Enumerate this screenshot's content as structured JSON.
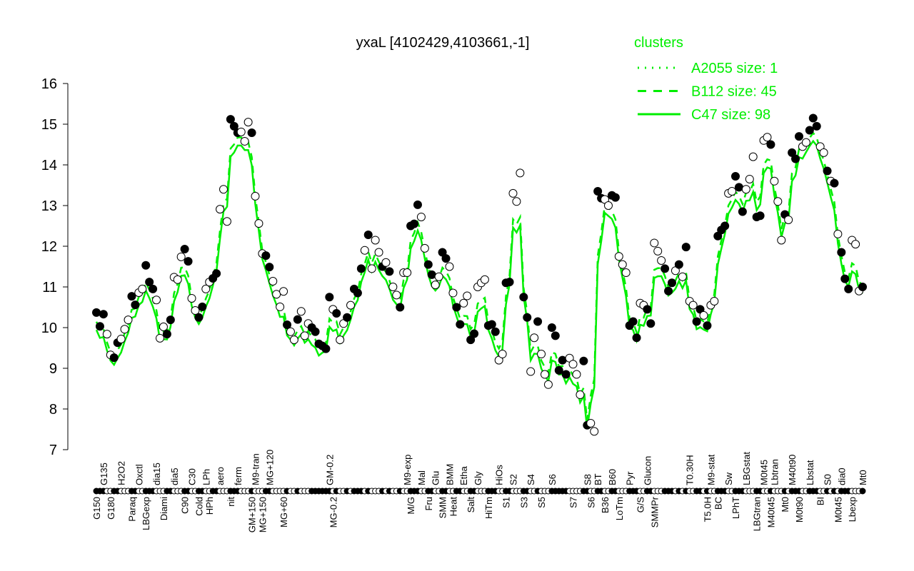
{
  "chart_data": {
    "type": "scatter",
    "title": "yxaL [4102429,4103661,-1]",
    "xlabel": "",
    "ylabel": "",
    "ylim": [
      7,
      16
    ],
    "yticks": [
      7,
      8,
      9,
      10,
      11,
      12,
      13,
      14,
      15,
      16
    ],
    "grid": false,
    "legend": {
      "title": "clusters",
      "placement": "top-right",
      "color": "#00ee00",
      "entries": [
        {
          "label": "A2055 size: 1",
          "style": "dotted"
        },
        {
          "label": "B112 size: 45",
          "style": "dashed"
        },
        {
          "label": "C47 size: 98",
          "style": "solid"
        }
      ]
    },
    "colors": {
      "line": "#00ee00",
      "filled_point": "#000000",
      "open_point": "#ffffff"
    },
    "points": [
      [
        "G150",
        10.37,
        1
      ],
      [
        "",
        10.03,
        1
      ],
      [
        "G135",
        10.33,
        1
      ],
      [
        "",
        9.84,
        0
      ],
      [
        "G180",
        9.33,
        0
      ],
      [
        "",
        9.26,
        1
      ],
      [
        "",
        9.63,
        1
      ],
      [
        "H2O2",
        9.72,
        0
      ],
      [
        "",
        9.96,
        0
      ],
      [
        "",
        10.19,
        0
      ],
      [
        "Paraq",
        10.77,
        1
      ],
      [
        "",
        10.56,
        1
      ],
      [
        "Oxctl",
        10.86,
        0
      ],
      [
        "",
        10.95,
        0
      ],
      [
        "LBGexp",
        11.53,
        1
      ],
      [
        "",
        11.12,
        1
      ],
      [
        "",
        10.95,
        1
      ],
      [
        "dia15",
        10.68,
        0
      ],
      [
        "",
        9.74,
        0
      ],
      [
        "Diami",
        10.02,
        0
      ],
      [
        "",
        9.84,
        1
      ],
      [
        "",
        10.19,
        1
      ],
      [
        "dia5",
        11.24,
        0
      ],
      [
        "",
        11.18,
        0
      ],
      [
        "",
        11.74,
        0
      ],
      [
        "C90",
        11.93,
        1
      ],
      [
        "",
        11.63,
        1
      ],
      [
        "C30",
        10.72,
        0
      ],
      [
        "",
        10.42,
        0
      ],
      [
        "Cold",
        10.25,
        1
      ],
      [
        "",
        10.51,
        1
      ],
      [
        "LPh",
        10.95,
        0
      ],
      [
        "HPh",
        11.12,
        0
      ],
      [
        "",
        11.21,
        1
      ],
      [
        "",
        11.33,
        1
      ],
      [
        "aero",
        12.91,
        0
      ],
      [
        "",
        13.4,
        0
      ],
      [
        "",
        12.61,
        0
      ],
      [
        "nit",
        15.12,
        1
      ],
      [
        "",
        14.95,
        1
      ],
      [
        "ferm",
        14.79,
        1
      ],
      [
        "",
        14.81,
        0
      ],
      [
        "",
        14.58,
        0
      ],
      [
        "",
        15.05,
        0
      ],
      [
        "GM+150",
        14.79,
        1
      ],
      [
        "M9-tran",
        13.23,
        0
      ],
      [
        "",
        12.56,
        0
      ],
      [
        "MG+150",
        11.82,
        0
      ],
      [
        "",
        11.77,
        1
      ],
      [
        "MG+120",
        11.49,
        1
      ],
      [
        "",
        11.14,
        0
      ],
      [
        "",
        10.82,
        0
      ],
      [
        "",
        10.51,
        0
      ],
      [
        "MG+60",
        10.89,
        0
      ],
      [
        "",
        10.07,
        1
      ],
      [
        "",
        9.9,
        0
      ],
      [
        "",
        9.7,
        0
      ],
      [
        "",
        10.2,
        1
      ],
      [
        "",
        10.4,
        0
      ],
      [
        "",
        9.8,
        0
      ],
      [
        "",
        10.1,
        0
      ],
      [
        "",
        10.0,
        1
      ],
      [
        "",
        9.9,
        1
      ],
      [
        "",
        9.6,
        1
      ],
      [
        "",
        9.55,
        1
      ],
      [
        "",
        9.48,
        1
      ],
      [
        "GM-0.2",
        10.75,
        1
      ],
      [
        "MG-0.2",
        10.45,
        0
      ],
      [
        "",
        10.35,
        1
      ],
      [
        "",
        9.7,
        0
      ],
      [
        "",
        10.1,
        0
      ],
      [
        "",
        10.25,
        1
      ],
      [
        "",
        10.55,
        0
      ],
      [
        "",
        10.95,
        1
      ],
      [
        "",
        10.85,
        1
      ],
      [
        "",
        11.45,
        1
      ],
      [
        "",
        11.9,
        0
      ],
      [
        "",
        12.28,
        1
      ],
      [
        "",
        11.45,
        0
      ],
      [
        "",
        12.15,
        0
      ],
      [
        "",
        11.85,
        0
      ],
      [
        "",
        11.5,
        1
      ],
      [
        "",
        11.6,
        0
      ],
      [
        "",
        11.38,
        1
      ],
      [
        "",
        11.0,
        0
      ],
      [
        "",
        10.8,
        0
      ],
      [
        "",
        10.5,
        1
      ],
      [
        "",
        11.35,
        0
      ],
      [
        "M9-exp",
        11.35,
        0
      ],
      [
        "M/G",
        12.5,
        1
      ],
      [
        "",
        12.55,
        1
      ],
      [
        "",
        13.02,
        1
      ],
      [
        "Mal",
        12.72,
        0
      ],
      [
        "",
        11.95,
        0
      ],
      [
        "Fru",
        11.55,
        1
      ],
      [
        "",
        11.3,
        1
      ],
      [
        "Glu",
        11.05,
        0
      ],
      [
        "",
        11.25,
        0
      ],
      [
        "SMM",
        11.85,
        1
      ],
      [
        "",
        11.7,
        1
      ],
      [
        "BMM",
        11.5,
        0
      ],
      [
        "Heat",
        10.85,
        0
      ],
      [
        "",
        10.5,
        1
      ],
      [
        "",
        10.08,
        1
      ],
      [
        "Etha",
        10.6,
        0
      ],
      [
        "",
        10.78,
        0
      ],
      [
        "Salt",
        9.7,
        1
      ],
      [
        "",
        9.85,
        1
      ],
      [
        "Gly",
        11.0,
        0
      ],
      [
        "",
        11.1,
        0
      ],
      [
        "",
        11.18,
        0
      ],
      [
        "HiTm",
        10.05,
        1
      ],
      [
        "",
        10.08,
        1
      ],
      [
        "",
        9.9,
        1
      ],
      [
        "HiOs",
        9.2,
        0
      ],
      [
        "",
        9.35,
        0
      ],
      [
        "S1",
        11.1,
        1
      ],
      [
        "",
        11.12,
        1
      ],
      [
        "S2",
        13.3,
        0
      ],
      [
        "",
        13.1,
        0
      ],
      [
        "",
        13.8,
        0
      ],
      [
        "S3",
        10.75,
        1
      ],
      [
        "",
        10.25,
        1
      ],
      [
        "S4",
        8.92,
        0
      ],
      [
        "",
        9.75,
        0
      ],
      [
        "",
        10.15,
        1
      ],
      [
        "S5",
        9.35,
        0
      ],
      [
        "",
        8.85,
        0
      ],
      [
        "",
        8.6,
        0
      ],
      [
        "S6",
        10.0,
        1
      ],
      [
        "",
        9.8,
        1
      ],
      [
        "",
        8.95,
        1
      ],
      [
        "",
        9.2,
        1
      ],
      [
        "",
        8.85,
        1
      ],
      [
        "",
        9.25,
        0
      ],
      [
        "S7",
        9.1,
        0
      ],
      [
        "",
        8.85,
        0
      ],
      [
        "",
        8.35,
        0
      ],
      [
        "",
        9.18,
        1
      ],
      [
        "S8",
        7.6,
        1
      ],
      [
        "S6",
        7.65,
        0
      ],
      [
        "",
        7.45,
        0
      ],
      [
        "BT",
        13.35,
        1
      ],
      [
        "",
        13.18,
        1
      ],
      [
        "B36",
        13.15,
        0
      ],
      [
        "",
        13.0,
        0
      ],
      [
        "B60",
        13.25,
        1
      ],
      [
        "",
        13.2,
        1
      ],
      [
        "LoTm",
        11.75,
        0
      ],
      [
        "",
        11.55,
        0
      ],
      [
        "",
        11.35,
        0
      ],
      [
        "Pyr",
        10.05,
        1
      ],
      [
        "",
        10.15,
        1
      ],
      [
        "",
        9.75,
        1
      ],
      [
        "G/S",
        10.6,
        0
      ],
      [
        "",
        10.55,
        0
      ],
      [
        "Glucon",
        10.45,
        1
      ],
      [
        "",
        10.1,
        1
      ],
      [
        "SMMPr",
        12.08,
        0
      ],
      [
        "",
        11.88,
        0
      ],
      [
        "",
        11.65,
        0
      ],
      [
        "",
        11.45,
        1
      ],
      [
        "",
        10.9,
        1
      ],
      [
        "",
        11.1,
        1
      ],
      [
        "",
        11.4,
        0
      ],
      [
        "",
        11.55,
        1
      ],
      [
        "",
        11.25,
        0
      ],
      [
        "",
        11.98,
        1
      ],
      [
        "T0.30H",
        10.65,
        0
      ],
      [
        "",
        10.55,
        0
      ],
      [
        "",
        10.15,
        1
      ],
      [
        "",
        10.45,
        1
      ],
      [
        "",
        10.3,
        0
      ],
      [
        "T5.0H",
        10.05,
        1
      ],
      [
        "M9-stat",
        10.55,
        0
      ],
      [
        "",
        10.65,
        0
      ],
      [
        "BC",
        12.25,
        1
      ],
      [
        "",
        12.4,
        1
      ],
      [
        "",
        12.5,
        1
      ],
      [
        "Sw",
        13.3,
        0
      ],
      [
        "",
        13.35,
        0
      ],
      [
        "LPhT",
        13.72,
        1
      ],
      [
        "",
        13.45,
        1
      ],
      [
        "",
        12.85,
        1
      ],
      [
        "LBGstat",
        13.4,
        0
      ],
      [
        "",
        13.65,
        0
      ],
      [
        "",
        14.2,
        0
      ],
      [
        "LBGtran",
        12.72,
        1
      ],
      [
        "",
        12.75,
        1
      ],
      [
        "M0t45",
        14.6,
        0
      ],
      [
        "",
        14.68,
        0
      ],
      [
        "M40t45",
        14.5,
        1
      ],
      [
        "Lbtran",
        13.6,
        0
      ],
      [
        "",
        13.1,
        0
      ],
      [
        "",
        12.15,
        0
      ],
      [
        "Mt0",
        12.78,
        1
      ],
      [
        "",
        12.65,
        0
      ],
      [
        "M40t90",
        14.3,
        1
      ],
      [
        "",
        14.15,
        1
      ],
      [
        "M0t90",
        14.7,
        1
      ],
      [
        "",
        14.45,
        0
      ],
      [
        "",
        14.55,
        0
      ],
      [
        "Lbstat",
        14.85,
        1
      ],
      [
        "",
        15.15,
        1
      ],
      [
        "",
        14.95,
        1
      ],
      [
        "BI",
        14.45,
        0
      ],
      [
        "",
        14.3,
        0
      ],
      [
        "S0",
        13.85,
        1
      ],
      [
        "",
        13.6,
        0
      ],
      [
        "",
        13.55,
        1
      ],
      [
        "M0t45",
        12.3,
        0
      ],
      [
        "dia0",
        11.85,
        1
      ],
      [
        "",
        11.2,
        1
      ],
      [
        "",
        10.95,
        1
      ],
      [
        "Lbexp",
        12.15,
        0
      ],
      [
        "",
        12.05,
        0
      ],
      [
        "",
        10.9,
        0
      ],
      [
        "Mt0",
        11.0,
        1
      ]
    ]
  }
}
